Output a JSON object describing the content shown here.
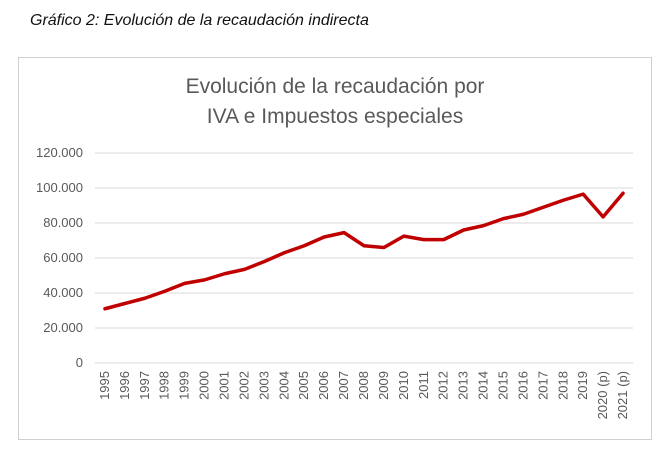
{
  "caption": "Gráfico 2: Evolución de la recaudación indirecta",
  "chart_data": {
    "type": "line",
    "title": [
      "Evolución de la recaudación por",
      "IVA e Impuestos especiales"
    ],
    "xlabel": "",
    "ylabel": "",
    "ylim": [
      0,
      120000
    ],
    "yticks": [
      0,
      20000,
      40000,
      60000,
      80000,
      100000,
      120000
    ],
    "ytick_labels": [
      "0",
      "20.000",
      "40.000",
      "60.000",
      "80.000",
      "100.000",
      "120.000"
    ],
    "grid": true,
    "line_color": "#C00000",
    "categories": [
      "1995",
      "1996",
      "1997",
      "1998",
      "1999",
      "2000",
      "2001",
      "2002",
      "2003",
      "2004",
      "2005",
      "2006",
      "2007",
      "2008",
      "2009",
      "2010",
      "2011",
      "2012",
      "2013",
      "2014",
      "2015",
      "2016",
      "2017",
      "2018",
      "2019",
      "2020 (p)",
      "2021 (p)"
    ],
    "values": [
      31000,
      34000,
      37000,
      41000,
      45500,
      47500,
      51000,
      53500,
      58000,
      63000,
      67000,
      72000,
      74500,
      67000,
      66000,
      72500,
      70500,
      70500,
      76000,
      78500,
      82500,
      85000,
      89000,
      93000,
      96500,
      83500,
      97000
    ]
  }
}
